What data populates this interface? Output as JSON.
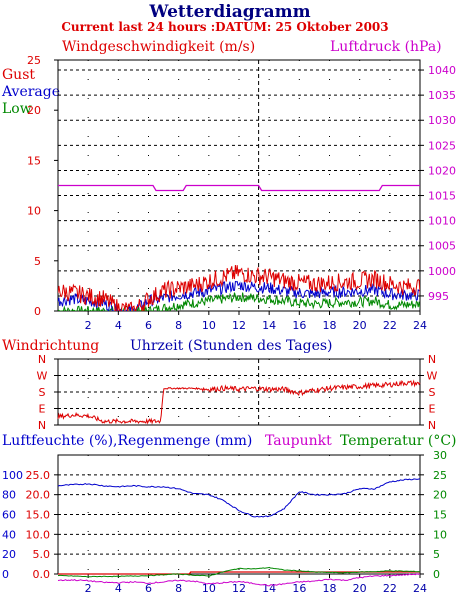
{
  "header": {
    "title": "Wetterdiagramm",
    "subtitle": "Current last 24 hours :DATUM: 25 Oktober 2003"
  },
  "colors": {
    "red": "#dd0000",
    "blue": "#0000cc",
    "green": "#008800",
    "magenta": "#cc00cc",
    "black": "#000000"
  },
  "chart_data": [
    {
      "type": "line",
      "title": "",
      "ylabel": "Windgeschwindigkeit (m/s)",
      "y2label": "Luftdruck (hPa)",
      "xlabel": "Uhrzeit (Stunden des Tages)",
      "xlim": [
        0,
        24
      ],
      "ylim": [
        0,
        25
      ],
      "y2lim": [
        992,
        1042
      ],
      "grid": true,
      "x_ticks": [
        "2",
        "4",
        "6",
        "8",
        "10",
        "12",
        "14",
        "16",
        "18",
        "20",
        "22",
        "24"
      ],
      "y_ticks": [
        "0",
        "5",
        "10",
        "15",
        "20",
        "25"
      ],
      "y2_ticks": [
        "995",
        "1000",
        "1005",
        "1010",
        "1015",
        "1020",
        "1025",
        "1030",
        "1035",
        "1040"
      ],
      "legend": [
        "Gust",
        "Average",
        "Low"
      ],
      "legend_position": "top-left",
      "series": [
        {
          "name": "Gust",
          "axis": "y",
          "color": "#dd0000",
          "x": [
            0,
            1,
            2,
            3,
            4,
            5,
            6,
            7,
            8,
            9,
            10,
            11,
            12,
            13,
            14,
            15,
            16,
            17,
            18,
            19,
            20,
            21,
            22,
            23,
            24
          ],
          "y": [
            2.0,
            1.8,
            1.5,
            1.2,
            0.3,
            0.0,
            1.2,
            2.0,
            2.3,
            2.5,
            3.0,
            3.4,
            3.8,
            3.5,
            3.4,
            3.0,
            2.8,
            2.7,
            2.8,
            2.9,
            3.0,
            3.2,
            2.7,
            2.4,
            2.5
          ]
        },
        {
          "name": "Average",
          "axis": "y",
          "color": "#0000cc",
          "x": [
            0,
            1,
            2,
            3,
            4,
            5,
            6,
            7,
            8,
            9,
            10,
            11,
            12,
            13,
            14,
            15,
            16,
            17,
            18,
            19,
            20,
            21,
            22,
            23,
            24
          ],
          "y": [
            1.0,
            1.2,
            1.0,
            0.8,
            0.0,
            0.0,
            1.0,
            1.3,
            1.6,
            1.8,
            2.0,
            2.3,
            2.6,
            2.4,
            2.3,
            2.0,
            1.8,
            1.7,
            1.9,
            1.9,
            2.0,
            2.1,
            1.7,
            1.6,
            1.6
          ]
        },
        {
          "name": "Low",
          "axis": "y",
          "color": "#008800",
          "x": [
            0,
            1,
            2,
            3,
            4,
            5,
            6,
            7,
            8,
            9,
            10,
            11,
            12,
            13,
            14,
            15,
            16,
            17,
            18,
            19,
            20,
            21,
            22,
            23,
            24
          ],
          "y": [
            0.0,
            0.0,
            0.0,
            0.0,
            0.0,
            0.0,
            0.0,
            0.3,
            0.6,
            0.8,
            1.0,
            1.2,
            1.4,
            1.3,
            1.2,
            1.0,
            0.8,
            0.7,
            0.8,
            0.9,
            0.9,
            1.0,
            0.6,
            0.6,
            0.7
          ]
        },
        {
          "name": "Luftdruck",
          "axis": "y2",
          "color": "#cc00cc",
          "x": [
            0,
            6.3,
            6.5,
            8.3,
            8.5,
            13.3,
            13.5,
            21.3,
            21.5,
            24
          ],
          "y": [
            1017,
            1017,
            1016,
            1016,
            1017,
            1017,
            1016,
            1016,
            1017,
            1017
          ]
        }
      ]
    },
    {
      "type": "line",
      "title": "",
      "ylabel": "Windrichtung",
      "xlim": [
        0,
        24
      ],
      "y_ticks": [
        "N",
        "W",
        "S",
        "E",
        "N"
      ],
      "ylim": [
        0,
        360
      ],
      "grid": true,
      "series": [
        {
          "name": "Windrichtung",
          "color": "#dd0000",
          "x": [
            0,
            1,
            2,
            3,
            4,
            5,
            6,
            6.8,
            7,
            8,
            9,
            10,
            11,
            12,
            13,
            14,
            15,
            16,
            17,
            18,
            19,
            20,
            21,
            22,
            23,
            24
          ],
          "y": [
            45,
            55,
            50,
            20,
            20,
            20,
            20,
            20,
            200,
            200,
            200,
            195,
            200,
            195,
            200,
            195,
            195,
            175,
            190,
            200,
            205,
            210,
            215,
            220,
            230,
            225
          ]
        }
      ]
    },
    {
      "type": "line",
      "title": "",
      "ylabel": "Luftfeuchte (%),Regenmenge (mm)",
      "y2label": "Temperatur (°C)",
      "extra_label": "Taupunkt",
      "xlim": [
        0,
        24
      ],
      "ylim": [
        0,
        120
      ],
      "rain_ticks": [
        "0.0",
        "5.0",
        "10.0",
        "15.0",
        "20.0",
        "25.0"
      ],
      "humidity_ticks": [
        "0",
        "20",
        "40",
        "60",
        "80",
        "100"
      ],
      "y2_ticks": [
        "0",
        "5",
        "10",
        "15",
        "20",
        "25",
        "30"
      ],
      "y2lim": [
        0,
        30
      ],
      "grid": true,
      "series": [
        {
          "name": "Luftfeuchte",
          "axis": "y",
          "color": "#0000cc",
          "x": [
            0,
            1,
            2,
            3,
            4,
            5,
            6,
            7,
            8,
            9,
            10,
            11,
            12,
            13,
            14,
            15,
            16,
            17,
            18,
            19,
            20,
            21,
            22,
            23,
            24
          ],
          "y": [
            89,
            90,
            91,
            89,
            88,
            89,
            88,
            88,
            86,
            81,
            80,
            74,
            64,
            58,
            58,
            66,
            83,
            80,
            80,
            81,
            86,
            86,
            93,
            95,
            96
          ]
        },
        {
          "name": "Regenmenge",
          "axis": "y",
          "color": "#dd0000",
          "x": [
            0,
            8.7,
            8.8,
            24
          ],
          "y": [
            0,
            0,
            2,
            2
          ]
        },
        {
          "name": "Temperatur",
          "axis": "y2",
          "color": "#008800",
          "x": [
            0,
            1,
            2,
            3,
            4,
            5,
            6,
            7,
            8,
            9,
            10,
            11,
            12,
            13,
            14,
            15,
            16,
            17,
            18,
            19,
            20,
            21,
            22,
            23,
            24
          ],
          "y": [
            -0.4,
            -0.5,
            -0.7,
            -0.6,
            -0.6,
            -0.5,
            -0.4,
            -0.2,
            0.0,
            -0.3,
            -0.5,
            0.6,
            1.4,
            1.3,
            1.6,
            1.0,
            0.8,
            0.5,
            0.4,
            0.3,
            0.5,
            0.6,
            0.8,
            0.7,
            0.6
          ]
        },
        {
          "name": "Taupunkt",
          "axis": "y2",
          "color": "#cc00cc",
          "x": [
            0,
            1,
            2,
            3,
            4,
            5,
            6,
            7,
            8,
            9,
            10,
            11,
            12,
            13,
            14,
            15,
            16,
            17,
            18,
            19,
            20,
            21,
            22,
            23,
            24
          ],
          "y": [
            -1.6,
            -1.5,
            -1.7,
            -2.1,
            -2.2,
            -2.0,
            -2.3,
            -2.0,
            -1.6,
            -1.8,
            -2.5,
            -2.2,
            -1.9,
            -2.4,
            -2.9,
            -2.5,
            -2.0,
            -1.8,
            -1.3,
            -1.6,
            -0.9,
            -0.5,
            -0.4,
            -0.2,
            0.0
          ]
        }
      ]
    }
  ]
}
